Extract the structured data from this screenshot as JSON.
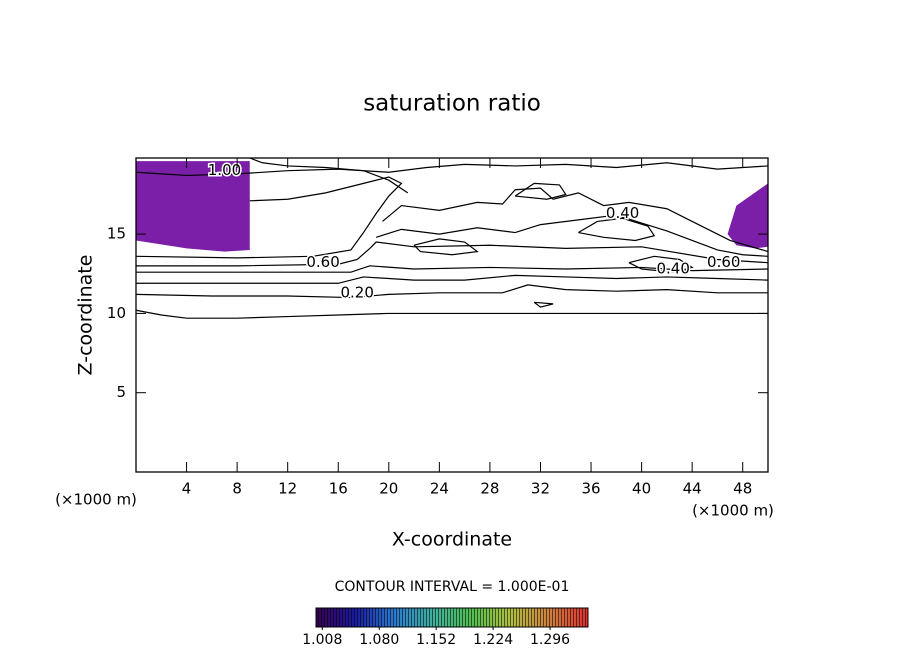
{
  "chart_data": {
    "type": "contour",
    "title": "saturation ratio",
    "xlabel": "X-coordinate",
    "ylabel": "Z-coordinate",
    "xunit": "(×1000 m)",
    "yunit": "(×1000 m)",
    "xlim": [
      0,
      50
    ],
    "ylim": [
      0,
      19.8
    ],
    "xticks": [
      4,
      8,
      12,
      16,
      20,
      24,
      28,
      32,
      36,
      40,
      44,
      48
    ],
    "yticks": [
      5,
      10,
      15
    ],
    "line_color": "#000000",
    "filled_regions": [
      {
        "color": "#7b1fa8",
        "x": [
          0,
          9,
          9,
          7,
          4,
          0
        ],
        "y": [
          19.6,
          19.6,
          14,
          13.9,
          14.1,
          14.6
        ]
      },
      {
        "color": "#7b1fa8",
        "x": [
          50,
          50,
          49,
          47.5,
          46.8,
          47.5
        ],
        "y": [
          18.2,
          14.2,
          14.1,
          14.3,
          15,
          16.8
        ]
      }
    ],
    "contours": [
      {
        "x": [
          0,
          2,
          4,
          8,
          12,
          16,
          20,
          26,
          32,
          38,
          44,
          50
        ],
        "y": [
          10.2,
          9.9,
          9.7,
          9.7,
          9.8,
          9.9,
          10.0,
          10.0,
          10.0,
          10.0,
          10.0,
          10.0
        ]
      },
      {
        "x": [
          0,
          6,
          12,
          17,
          20,
          24,
          29,
          31,
          34,
          38,
          42,
          46,
          50
        ],
        "y": [
          11.2,
          11.1,
          11.1,
          11.0,
          11.2,
          11.3,
          11.3,
          11.8,
          11.5,
          11.4,
          11.5,
          11.3,
          11.3
        ]
      },
      {
        "x": [
          0,
          8,
          16,
          18,
          22,
          26,
          30,
          34,
          38,
          42,
          46,
          50
        ],
        "y": [
          11.9,
          11.9,
          11.9,
          12.3,
          12.1,
          12.1,
          12.4,
          12.3,
          12.2,
          12.3,
          12.2,
          12.1
        ]
      },
      {
        "x": [
          0,
          8,
          17,
          18.5,
          22,
          28,
          34,
          40,
          44,
          50
        ],
        "y": [
          12.6,
          12.6,
          12.6,
          13.0,
          12.8,
          12.9,
          12.8,
          12.9,
          12.7,
          12.8
        ]
      },
      {
        "x": [
          0,
          8,
          16,
          17.5,
          18.5,
          19,
          22,
          28,
          34,
          40,
          46,
          50
        ],
        "y": [
          13.0,
          13.0,
          13.1,
          13.4,
          14.1,
          14.5,
          14.2,
          14.3,
          14.1,
          14.2,
          13.4,
          13.2
        ]
      },
      {
        "x": [
          0,
          8,
          14,
          17,
          18,
          19,
          20,
          21,
          20,
          18,
          15,
          12,
          9
        ],
        "y": [
          13.6,
          13.5,
          13.6,
          14.0,
          15.1,
          16.3,
          17.4,
          18.2,
          18.6,
          18.2,
          17.6,
          17.2,
          17.1
        ]
      },
      {
        "x": [
          0,
          4,
          8,
          12,
          16,
          20,
          23,
          26,
          30,
          34,
          38,
          42,
          46,
          50
        ],
        "y": [
          18.9,
          18.7,
          18.8,
          19.0,
          19.1,
          18.9,
          19.2,
          19.4,
          19.3,
          19.4,
          19.2,
          19.5,
          19.1,
          19.3
        ]
      },
      {
        "x": [
          19.5,
          21,
          24,
          27,
          29,
          30,
          32,
          33,
          35,
          37,
          39,
          42,
          44,
          47,
          50
        ],
        "y": [
          15.8,
          16.8,
          16.5,
          17.0,
          16.9,
          17.8,
          17.9,
          17.2,
          17.6,
          16.8,
          17.0,
          16.6,
          15.8,
          14.6,
          13.9
        ]
      },
      {
        "x": [
          19,
          21,
          24,
          27,
          30,
          32,
          35,
          38,
          40,
          42,
          44,
          46,
          48,
          50
        ],
        "y": [
          14.8,
          15.3,
          15.0,
          15.4,
          15.1,
          15.6,
          15.9,
          16.2,
          15.7,
          15.2,
          14.6,
          14.0,
          13.7,
          13.6
        ]
      },
      {
        "x": [
          35,
          36.5,
          38.5,
          40.5,
          41,
          39.5,
          37,
          35
        ],
        "y": [
          15.1,
          15.8,
          16.0,
          15.5,
          14.9,
          14.6,
          14.8,
          15.1
        ]
      },
      {
        "x": [
          30,
          31.5,
          33.5,
          34,
          32.5,
          30
        ],
        "y": [
          17.4,
          18.2,
          18.1,
          17.5,
          17.2,
          17.4
        ]
      },
      {
        "x": [
          22,
          24,
          26,
          27,
          25,
          22.5,
          22
        ],
        "y": [
          14.3,
          14.7,
          14.5,
          13.9,
          13.7,
          13.9,
          14.3
        ]
      },
      {
        "x": [
          39,
          41,
          43,
          44,
          42.5,
          40,
          39
        ],
        "y": [
          13.2,
          13.6,
          13.4,
          12.9,
          12.6,
          12.8,
          13.2
        ]
      },
      {
        "x": [
          31.5,
          33,
          32,
          31.5
        ],
        "y": [
          10.7,
          10.6,
          10.4,
          10.7
        ]
      },
      {
        "x": [
          9,
          10,
          12,
          15,
          18,
          20,
          21.5
        ],
        "y": [
          19.8,
          19.5,
          19.3,
          19.2,
          19.0,
          18.4,
          17.6
        ]
      }
    ],
    "contour_labels": [
      {
        "text": "1.00",
        "x": 7,
        "y": 19.0
      },
      {
        "text": "0.60",
        "x": 14.8,
        "y": 13.2
      },
      {
        "text": "0.20",
        "x": 17.5,
        "y": 11.3
      },
      {
        "text": "0.40",
        "x": 38.5,
        "y": 16.3
      },
      {
        "text": "0.40",
        "x": 42.5,
        "y": 12.8
      },
      {
        "text": "0.60",
        "x": 46.5,
        "y": 13.2
      }
    ],
    "contour_interval": "CONTOUR INTERVAL = 1.000E-01",
    "colorbar": {
      "clim": [
        1.0,
        1.344
      ],
      "colors": [
        "#3a0050",
        "#1a1aa0",
        "#2a7ad0",
        "#40b0a0",
        "#50c050",
        "#b0c040",
        "#d08040",
        "#e03030"
      ],
      "ticks": [
        1.008,
        {
          "value": 1.08,
          "label": "1.080"
        },
        1.152,
        1.224,
        1.296
      ]
    }
  }
}
